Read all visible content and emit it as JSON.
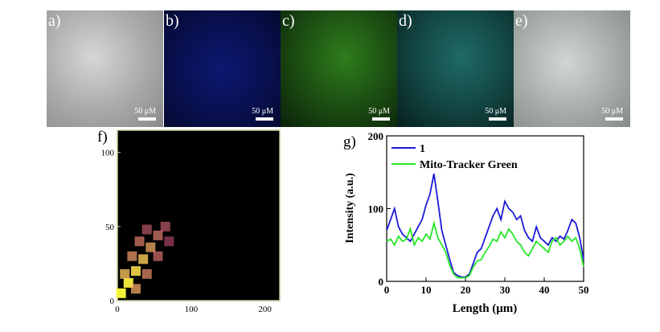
{
  "panels": [
    {
      "id": "a",
      "label": "a)",
      "scale": "50 μM",
      "channel": "bright-field"
    },
    {
      "id": "b",
      "label": "b)",
      "scale": "50 μM",
      "channel": "blue"
    },
    {
      "id": "c",
      "label": "c)",
      "scale": "50 μM",
      "channel": "green"
    },
    {
      "id": "d",
      "label": "d)",
      "scale": "50 μM",
      "channel": "cyan"
    },
    {
      "id": "e",
      "label": "e)",
      "scale": "50 μM",
      "channel": "overlay"
    }
  ],
  "colors": {
    "series1": "#1a1ad6",
    "series2": "#27e627",
    "scatter_bg": "#000000",
    "frame": "#c8c89a"
  },
  "chart_data": [
    {
      "type": "heatmap",
      "label": "f)",
      "x_ticks": [
        "0",
        "100",
        "200"
      ],
      "y_ticks": [
        "0",
        "50",
        "100"
      ],
      "xlim": [
        0,
        220
      ],
      "ylim": [
        0,
        115
      ],
      "description_values": [
        {
          "x": 5,
          "y": 5,
          "v": 1.0
        },
        {
          "x": 15,
          "y": 12,
          "v": 0.95
        },
        {
          "x": 25,
          "y": 20,
          "v": 0.85
        },
        {
          "x": 35,
          "y": 28,
          "v": 0.75
        },
        {
          "x": 45,
          "y": 36,
          "v": 0.6
        },
        {
          "x": 55,
          "y": 44,
          "v": 0.45
        },
        {
          "x": 65,
          "y": 50,
          "v": 0.3
        },
        {
          "x": 10,
          "y": 18,
          "v": 0.7
        },
        {
          "x": 20,
          "y": 30,
          "v": 0.55
        },
        {
          "x": 30,
          "y": 40,
          "v": 0.45
        },
        {
          "x": 40,
          "y": 48,
          "v": 0.3
        },
        {
          "x": 25,
          "y": 8,
          "v": 0.6
        },
        {
          "x": 40,
          "y": 18,
          "v": 0.5
        },
        {
          "x": 55,
          "y": 30,
          "v": 0.4
        },
        {
          "x": 70,
          "y": 40,
          "v": 0.2
        }
      ]
    },
    {
      "type": "line",
      "label": "g)",
      "xlabel": "Length (μm)",
      "ylabel": "Intensity (a.u.)",
      "xlim": [
        0,
        50
      ],
      "ylim": [
        0,
        200
      ],
      "x_ticks": [
        0,
        10,
        20,
        30,
        40,
        50
      ],
      "y_ticks": [
        0,
        100,
        200
      ],
      "series": [
        {
          "name": "1",
          "color": "#1a1ad6",
          "x": [
            0,
            1,
            2,
            3,
            4,
            5,
            6,
            7,
            8,
            9,
            10,
            11,
            12,
            13,
            14,
            15,
            16,
            17,
            18,
            19,
            20,
            21,
            22,
            23,
            24,
            25,
            26,
            27,
            28,
            29,
            30,
            31,
            32,
            33,
            34,
            35,
            36,
            37,
            38,
            39,
            40,
            41,
            42,
            43,
            44,
            45,
            46,
            47,
            48,
            49,
            50
          ],
          "values": [
            70,
            85,
            100,
            75,
            65,
            60,
            55,
            65,
            75,
            85,
            105,
            120,
            148,
            110,
            70,
            50,
            30,
            12,
            8,
            6,
            6,
            10,
            25,
            40,
            45,
            60,
            75,
            90,
            100,
            85,
            110,
            100,
            95,
            85,
            90,
            70,
            60,
            55,
            75,
            60,
            55,
            50,
            60,
            55,
            62,
            58,
            70,
            85,
            80,
            60,
            30
          ]
        },
        {
          "name": "Mito-Tracker Green",
          "color": "#27e627",
          "x": [
            0,
            1,
            2,
            3,
            4,
            5,
            6,
            7,
            8,
            9,
            10,
            11,
            12,
            13,
            14,
            15,
            16,
            17,
            18,
            19,
            20,
            21,
            22,
            23,
            24,
            25,
            26,
            27,
            28,
            29,
            30,
            31,
            32,
            33,
            34,
            35,
            36,
            37,
            38,
            39,
            40,
            41,
            42,
            43,
            44,
            45,
            46,
            47,
            48,
            49,
            50
          ],
          "values": [
            55,
            58,
            50,
            62,
            55,
            58,
            72,
            50,
            60,
            55,
            65,
            58,
            80,
            60,
            50,
            40,
            22,
            10,
            5,
            5,
            5,
            8,
            20,
            28,
            30,
            40,
            48,
            58,
            55,
            68,
            60,
            72,
            65,
            55,
            50,
            40,
            35,
            45,
            55,
            50,
            45,
            40,
            55,
            60,
            50,
            55,
            62,
            55,
            60,
            45,
            20
          ]
        }
      ]
    }
  ]
}
